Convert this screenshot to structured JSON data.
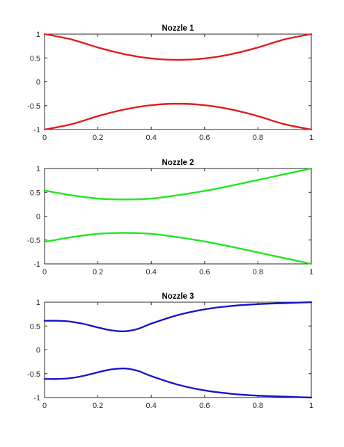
{
  "chart_data": [
    {
      "type": "line",
      "title": "Nozzle 1",
      "xlim": [
        0,
        1
      ],
      "ylim": [
        -1,
        1
      ],
      "xticks": [
        "0",
        "0.2",
        "0.4",
        "0.6",
        "0.8",
        "1"
      ],
      "yticks": [
        "1",
        "0.5",
        "0",
        "-0.5",
        "-1"
      ],
      "color": "#e41a1a",
      "series": [
        {
          "x": [
            0,
            0.1,
            0.2,
            0.3,
            0.4,
            0.5,
            0.6,
            0.7,
            0.8,
            0.9,
            1
          ],
          "y": [
            1,
            0.89,
            0.72,
            0.58,
            0.49,
            0.46,
            0.49,
            0.58,
            0.72,
            0.89,
            1
          ]
        },
        {
          "x": [
            0,
            0.1,
            0.2,
            0.3,
            0.4,
            0.5,
            0.6,
            0.7,
            0.8,
            0.9,
            1
          ],
          "y": [
            -1,
            -0.89,
            -0.72,
            -0.58,
            -0.49,
            -0.46,
            -0.49,
            -0.58,
            -0.72,
            -0.89,
            -1
          ]
        }
      ]
    },
    {
      "type": "line",
      "title": "Nozzle 2",
      "xlim": [
        0,
        1
      ],
      "ylim": [
        -1,
        1
      ],
      "xticks": [
        "0",
        "0.2",
        "0.4",
        "0.6",
        "0.8",
        "1"
      ],
      "yticks": [
        "1",
        "0.5",
        "0",
        "-0.5",
        "-1"
      ],
      "color": "#1ee61e",
      "series": [
        {
          "x": [
            0,
            0.1,
            0.2,
            0.3,
            0.4,
            0.5,
            0.6,
            0.7,
            0.8,
            0.9,
            1
          ],
          "y": [
            0.54,
            0.44,
            0.37,
            0.35,
            0.37,
            0.44,
            0.53,
            0.64,
            0.76,
            0.88,
            1
          ]
        },
        {
          "x": [
            0,
            0.1,
            0.2,
            0.3,
            0.4,
            0.5,
            0.6,
            0.7,
            0.8,
            0.9,
            1
          ],
          "y": [
            -0.54,
            -0.44,
            -0.37,
            -0.35,
            -0.37,
            -0.44,
            -0.53,
            -0.64,
            -0.76,
            -0.88,
            -1
          ]
        }
      ]
    },
    {
      "type": "line",
      "title": "Nozzle 3",
      "xlim": [
        0,
        1
      ],
      "ylim": [
        -1,
        1
      ],
      "xticks": [
        "0",
        "0.2",
        "0.4",
        "0.6",
        "0.8",
        "1"
      ],
      "yticks": [
        "1",
        "0.5",
        "0",
        "-0.5",
        "-1"
      ],
      "color": "#1414c8",
      "series": [
        {
          "x": [
            0,
            0.05,
            0.1,
            0.15,
            0.2,
            0.25,
            0.3,
            0.35,
            0.4,
            0.5,
            0.6,
            0.7,
            0.8,
            0.9,
            1
          ],
          "y": [
            0.61,
            0.61,
            0.59,
            0.54,
            0.47,
            0.41,
            0.39,
            0.44,
            0.55,
            0.73,
            0.85,
            0.92,
            0.96,
            0.98,
            1
          ]
        },
        {
          "x": [
            0,
            0.05,
            0.1,
            0.15,
            0.2,
            0.25,
            0.3,
            0.35,
            0.4,
            0.5,
            0.6,
            0.7,
            0.8,
            0.9,
            1
          ],
          "y": [
            -0.61,
            -0.61,
            -0.59,
            -0.54,
            -0.47,
            -0.41,
            -0.39,
            -0.44,
            -0.55,
            -0.73,
            -0.85,
            -0.92,
            -0.96,
            -0.98,
            -1
          ]
        }
      ]
    }
  ]
}
